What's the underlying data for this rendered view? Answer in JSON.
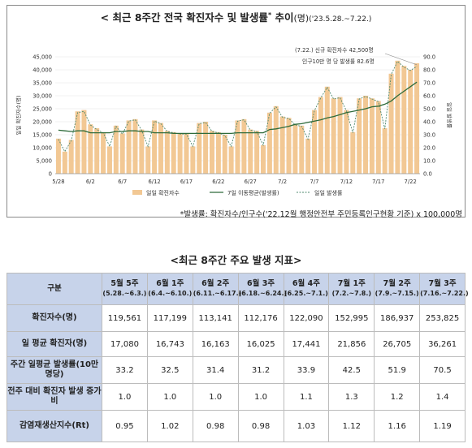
{
  "chart_title": {
    "main": "< 최근 8주간 전국 확진자수 및 발생률",
    "sup": "*",
    "suffix": " 추이",
    "unit": "(명)",
    "period": "('23.5.28.~7.22.)"
  },
  "chart_data": {
    "type": "bar+line",
    "title": "최근 8주간 전국 확진자수 및 발생률 추이(명)('23.5.28.~7.22.)",
    "ylabel_left": "일일 확진자수(명)",
    "ylabel_right": "일일 발생률",
    "ylim_left": [
      0,
      45000
    ],
    "ylim_right": [
      0,
      90
    ],
    "yticks_left": [
      "0",
      "5,000",
      "10,000",
      "15,000",
      "20,000",
      "25,000",
      "30,000",
      "35,000",
      "40,000",
      "45,000"
    ],
    "yticks_right": [
      "0.0",
      "10.0",
      "20.0",
      "30.0",
      "40.0",
      "50.0",
      "60.0",
      "70.0",
      "80.0",
      "90.0"
    ],
    "x_tick_labels": [
      {
        "index": 0,
        "label": "5/28"
      },
      {
        "index": 5,
        "label": "6/2"
      },
      {
        "index": 10,
        "label": "6/7"
      },
      {
        "index": 15,
        "label": "6/12"
      },
      {
        "index": 20,
        "label": "6/17"
      },
      {
        "index": 25,
        "label": "6/22"
      },
      {
        "index": 30,
        "label": "6/27"
      },
      {
        "index": 35,
        "label": "7/2"
      },
      {
        "index": 40,
        "label": "7/7"
      },
      {
        "index": 45,
        "label": "7/12"
      },
      {
        "index": 50,
        "label": "7/17"
      },
      {
        "index": 55,
        "label": "7/22"
      }
    ],
    "legend": [
      "일일 확진자수",
      "7일 이동평균(발생률)",
      "일일 발생률"
    ],
    "legend_position": "bottom",
    "daily_cases": [
      13500,
      8500,
      13000,
      24000,
      24500,
      19000,
      17500,
      16000,
      10500,
      18500,
      15500,
      20500,
      21000,
      17000,
      10500,
      20500,
      19500,
      16500,
      16000,
      15500,
      15500,
      10500,
      19500,
      20000,
      16500,
      16000,
      15000,
      10500,
      20500,
      21000,
      17000,
      16500,
      11000,
      23500,
      26000,
      22000,
      21500,
      19000,
      18500,
      13500,
      24500,
      29500,
      33500,
      29000,
      29500,
      24500,
      16000,
      29000,
      30000,
      29000,
      28000,
      17500,
      38500,
      43500,
      41500,
      40000,
      42500
    ],
    "daily_rate": [
      26.5,
      17,
      25.5,
      47,
      48,
      37.5,
      34,
      31.5,
      21,
      36.5,
      30.5,
      40.5,
      41.5,
      33.5,
      21,
      40.5,
      38.5,
      32.5,
      31.5,
      30.5,
      30.5,
      21,
      38.5,
      39.5,
      32.5,
      31.5,
      29.5,
      21,
      40.5,
      41.5,
      33.5,
      32.5,
      22,
      46.5,
      51.5,
      43.5,
      42.5,
      37.5,
      36.5,
      26.5,
      48.5,
      58.5,
      66.5,
      57.5,
      58.5,
      48.5,
      31.5,
      57.5,
      59.5,
      57.5,
      55.5,
      34.5,
      76.5,
      86.5,
      82,
      79.5,
      82.6
    ],
    "moving_avg_rate": [
      33.5,
      33,
      32.5,
      33,
      33,
      31.5,
      31.5,
      31.5,
      31.5,
      32.5,
      32.5,
      33,
      33,
      32.5,
      32.5,
      31.5,
      31.5,
      31.5,
      31,
      31,
      31,
      31,
      31,
      31,
      31,
      31,
      31,
      31,
      31.5,
      31.5,
      31.5,
      31.5,
      31.5,
      34,
      34.5,
      35.5,
      36.5,
      38,
      38.5,
      39.5,
      40.5,
      41.5,
      43,
      44,
      45.5,
      47,
      48,
      49,
      50,
      51.5,
      52,
      53.5,
      56,
      60,
      63.5,
      67,
      70.5
    ],
    "annotation": [
      "(7.22.) 신규 확진자수 42,500명",
      "인구10만 명 당 발생률 82.6명"
    ]
  },
  "footnote": "*발생률: 확진자수/인구수('22.12월 행정안전부 주민등록인구현황 기준) x 100,000명",
  "table_title": "<최근 8주간 주요 발생 지표>",
  "table": {
    "corner": "구분",
    "columns": [
      {
        "week": "5월 5주",
        "range": "(5.28.~6.3.)"
      },
      {
        "week": "6월 1주",
        "range": "(6.4.~6.10.)"
      },
      {
        "week": "6월 2주",
        "range": "(6.11.~6.17.)"
      },
      {
        "week": "6월 3주",
        "range": "(6.18.~6.24.)"
      },
      {
        "week": "6월 4주",
        "range": "(6.25.~7.1.)"
      },
      {
        "week": "7월 1주",
        "range": "(7.2.~7.8.)"
      },
      {
        "week": "7월 2주",
        "range": "(7.9.~7.15.)"
      },
      {
        "week": "7월 3주",
        "range": "(7.16.~7.22.)"
      }
    ],
    "rows": [
      {
        "label": "확진자수(명)",
        "values": [
          "119,561",
          "117,199",
          "113,141",
          "112,176",
          "122,090",
          "152,995",
          "186,937",
          "253,825"
        ]
      },
      {
        "label": "일 평균 확진자(명)",
        "values": [
          "17,080",
          "16,743",
          "16,163",
          "16,025",
          "17,441",
          "21,856",
          "26,705",
          "36,261"
        ]
      },
      {
        "label": "주간 일평균 발생률(10만 명당)",
        "values": [
          "33.2",
          "32.5",
          "31.4",
          "31.2",
          "33.9",
          "42.5",
          "51.9",
          "70.5"
        ]
      },
      {
        "label": "전주 대비 확진자 발생 증가비",
        "values": [
          "1.0",
          "1.0",
          "1.0",
          "1.0",
          "1.1",
          "1.3",
          "1.2",
          "1.4"
        ]
      },
      {
        "label": "감염재생산지수(Rt)",
        "values": [
          "0.95",
          "1.02",
          "0.98",
          "0.98",
          "1.03",
          "1.12",
          "1.16",
          "1.19"
        ]
      }
    ]
  },
  "colors": {
    "bar": "#f2c894",
    "moving_avg": "#2e6b3a",
    "daily_rate": "#4f8a6f",
    "header_bg": "#c7d3ea"
  }
}
